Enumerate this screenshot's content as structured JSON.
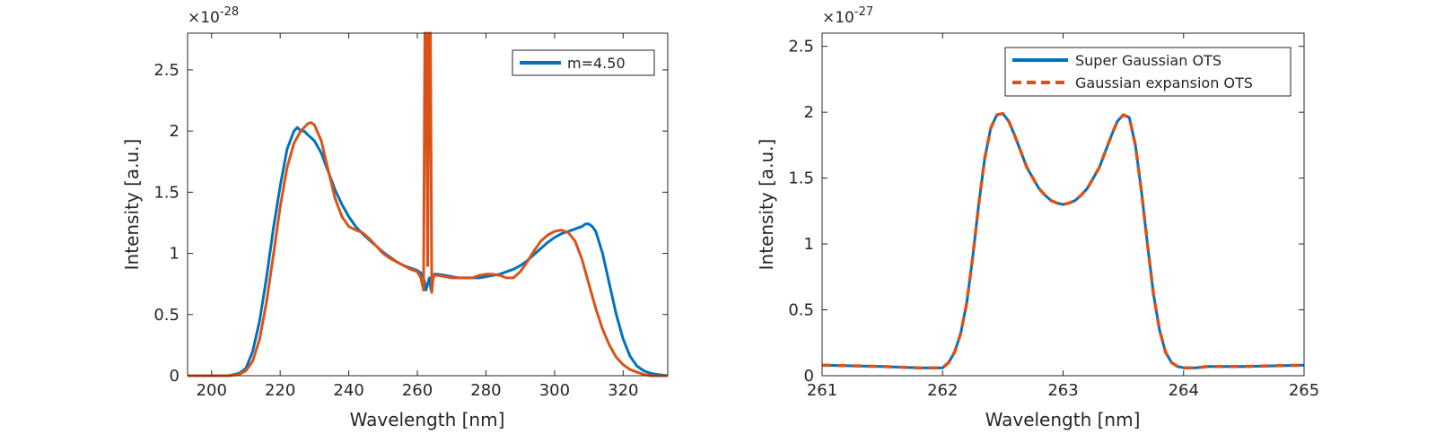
{
  "colors": {
    "blue": "#0072BD",
    "orange": "#D95319",
    "axis": "#262626",
    "background": "#ffffff"
  },
  "chart_data": [
    {
      "type": "line",
      "title": "",
      "xlabel": "Wavelength [nm]",
      "ylabel": "Intensity [a.u.]",
      "xlim": [
        193,
        333
      ],
      "ylim": [
        0,
        2.8
      ],
      "y_exponent_label": "-28",
      "xticks": [
        200,
        220,
        240,
        260,
        280,
        300,
        320
      ],
      "yticks": [
        0,
        0.5,
        1,
        1.5,
        2,
        2.5
      ],
      "grid": false,
      "legend_position": "top-right",
      "series": [
        {
          "name": "m=4.50",
          "color": "#0072BD",
          "style": "solid",
          "x": [
            193,
            200,
            205,
            208,
            210,
            212,
            214,
            216,
            218,
            220,
            222,
            224,
            225,
            226,
            227,
            228,
            230,
            232,
            234,
            236,
            238,
            240,
            242,
            244,
            246,
            248,
            250,
            252,
            254,
            256,
            258,
            260,
            261,
            262,
            262.5,
            263,
            263.5,
            264,
            264.5,
            265,
            266,
            268,
            270,
            272,
            274,
            276,
            278,
            280,
            282,
            284,
            286,
            288,
            290,
            292,
            294,
            296,
            298,
            300,
            302,
            304,
            306,
            308,
            309,
            310,
            311,
            312,
            314,
            316,
            318,
            320,
            322,
            324,
            326,
            328,
            330,
            333
          ],
          "values": [
            0.0,
            0.0,
            0.0,
            0.02,
            0.06,
            0.2,
            0.45,
            0.8,
            1.2,
            1.55,
            1.85,
            2.0,
            2.03,
            2.0,
            2.0,
            1.97,
            1.92,
            1.82,
            1.67,
            1.52,
            1.4,
            1.3,
            1.22,
            1.16,
            1.11,
            1.06,
            1.01,
            0.97,
            0.93,
            0.9,
            0.88,
            0.86,
            0.84,
            0.78,
            0.7,
            0.75,
            0.8,
            0.7,
            0.78,
            0.83,
            0.83,
            0.82,
            0.81,
            0.8,
            0.8,
            0.8,
            0.8,
            0.81,
            0.82,
            0.83,
            0.85,
            0.87,
            0.9,
            0.94,
            0.99,
            1.04,
            1.09,
            1.13,
            1.16,
            1.18,
            1.2,
            1.22,
            1.24,
            1.24,
            1.22,
            1.18,
            1.0,
            0.75,
            0.5,
            0.3,
            0.16,
            0.08,
            0.04,
            0.02,
            0.01,
            0.0
          ]
        },
        {
          "name": "",
          "color": "#D95319",
          "style": "solid",
          "x": [
            193,
            200,
            205,
            208,
            210,
            212,
            214,
            216,
            218,
            220,
            222,
            224,
            226,
            228,
            229,
            230,
            232,
            234,
            236,
            238,
            240,
            242,
            244,
            246,
            248,
            250,
            252,
            254,
            256,
            258,
            260,
            261,
            261.8,
            262.2,
            262.6,
            263,
            263.4,
            263.8,
            264.2,
            264.6,
            265,
            266,
            268,
            270,
            272,
            274,
            276,
            278,
            280,
            282,
            284,
            286,
            288,
            290,
            292,
            294,
            296,
            298,
            300,
            302,
            304,
            306,
            308,
            310,
            312,
            314,
            316,
            318,
            320,
            322,
            324,
            326,
            328,
            330,
            333
          ],
          "values": [
            0.0,
            0.0,
            0.0,
            0.01,
            0.04,
            0.12,
            0.3,
            0.6,
            0.98,
            1.38,
            1.7,
            1.9,
            2.0,
            2.06,
            2.07,
            2.05,
            1.92,
            1.68,
            1.45,
            1.3,
            1.22,
            1.19,
            1.17,
            1.12,
            1.06,
            1.0,
            0.96,
            0.93,
            0.9,
            0.87,
            0.85,
            0.8,
            0.7,
            2.8,
            2.8,
            0.9,
            2.8,
            2.8,
            0.68,
            0.8,
            0.82,
            0.82,
            0.81,
            0.8,
            0.8,
            0.8,
            0.8,
            0.82,
            0.83,
            0.83,
            0.82,
            0.8,
            0.8,
            0.85,
            0.93,
            1.02,
            1.1,
            1.15,
            1.18,
            1.19,
            1.17,
            1.1,
            0.95,
            0.75,
            0.55,
            0.38,
            0.25,
            0.15,
            0.09,
            0.05,
            0.03,
            0.01,
            0.0,
            0.0,
            0.0
          ]
        }
      ]
    },
    {
      "type": "line",
      "title": "",
      "xlabel": "Wavelength [nm]",
      "ylabel": "Intensity [a.u.]",
      "xlim": [
        261,
        265
      ],
      "ylim": [
        0,
        2.6
      ],
      "y_exponent_label": "-27",
      "xticks": [
        261,
        262,
        263,
        264,
        265
      ],
      "yticks": [
        0,
        0.5,
        1,
        1.5,
        2,
        2.5
      ],
      "grid": false,
      "legend_position": "top-right",
      "series": [
        {
          "name": "Super Gaussian OTS",
          "color": "#0072BD",
          "style": "solid",
          "x": [
            261.0,
            261.5,
            261.8,
            262.0,
            262.05,
            262.1,
            262.15,
            262.2,
            262.25,
            262.3,
            262.35,
            262.4,
            262.45,
            262.5,
            262.55,
            262.6,
            262.65,
            262.7,
            262.75,
            262.8,
            262.85,
            262.9,
            262.95,
            263.0,
            263.05,
            263.1,
            263.15,
            263.2,
            263.25,
            263.3,
            263.35,
            263.4,
            263.45,
            263.5,
            263.55,
            263.6,
            263.65,
            263.7,
            263.75,
            263.8,
            263.85,
            263.9,
            263.95,
            264.0,
            264.1,
            264.2,
            264.5,
            265.0
          ],
          "values": [
            0.08,
            0.07,
            0.06,
            0.06,
            0.1,
            0.18,
            0.32,
            0.55,
            0.9,
            1.3,
            1.65,
            1.88,
            1.98,
            1.99,
            1.93,
            1.82,
            1.7,
            1.58,
            1.5,
            1.42,
            1.37,
            1.33,
            1.31,
            1.3,
            1.31,
            1.33,
            1.37,
            1.42,
            1.5,
            1.58,
            1.7,
            1.82,
            1.93,
            1.98,
            1.96,
            1.75,
            1.4,
            1.0,
            0.62,
            0.35,
            0.18,
            0.1,
            0.07,
            0.06,
            0.06,
            0.07,
            0.07,
            0.08
          ]
        },
        {
          "name": "Gaussian expansion OTS",
          "color": "#D95319",
          "style": "dashed",
          "x": [
            261.0,
            261.5,
            261.8,
            262.0,
            262.05,
            262.1,
            262.15,
            262.2,
            262.25,
            262.3,
            262.35,
            262.4,
            262.45,
            262.5,
            262.55,
            262.6,
            262.65,
            262.7,
            262.75,
            262.8,
            262.85,
            262.9,
            262.95,
            263.0,
            263.05,
            263.1,
            263.15,
            263.2,
            263.25,
            263.3,
            263.35,
            263.4,
            263.45,
            263.5,
            263.55,
            263.6,
            263.65,
            263.7,
            263.75,
            263.8,
            263.85,
            263.9,
            263.95,
            264.0,
            264.1,
            264.2,
            264.5,
            265.0
          ],
          "values": [
            0.08,
            0.07,
            0.06,
            0.06,
            0.1,
            0.18,
            0.32,
            0.55,
            0.9,
            1.3,
            1.65,
            1.88,
            1.98,
            1.99,
            1.93,
            1.82,
            1.7,
            1.58,
            1.5,
            1.42,
            1.37,
            1.33,
            1.31,
            1.3,
            1.31,
            1.33,
            1.37,
            1.42,
            1.5,
            1.58,
            1.7,
            1.82,
            1.93,
            1.98,
            1.96,
            1.75,
            1.4,
            1.0,
            0.62,
            0.35,
            0.18,
            0.1,
            0.07,
            0.06,
            0.06,
            0.07,
            0.07,
            0.08
          ]
        }
      ]
    }
  ]
}
